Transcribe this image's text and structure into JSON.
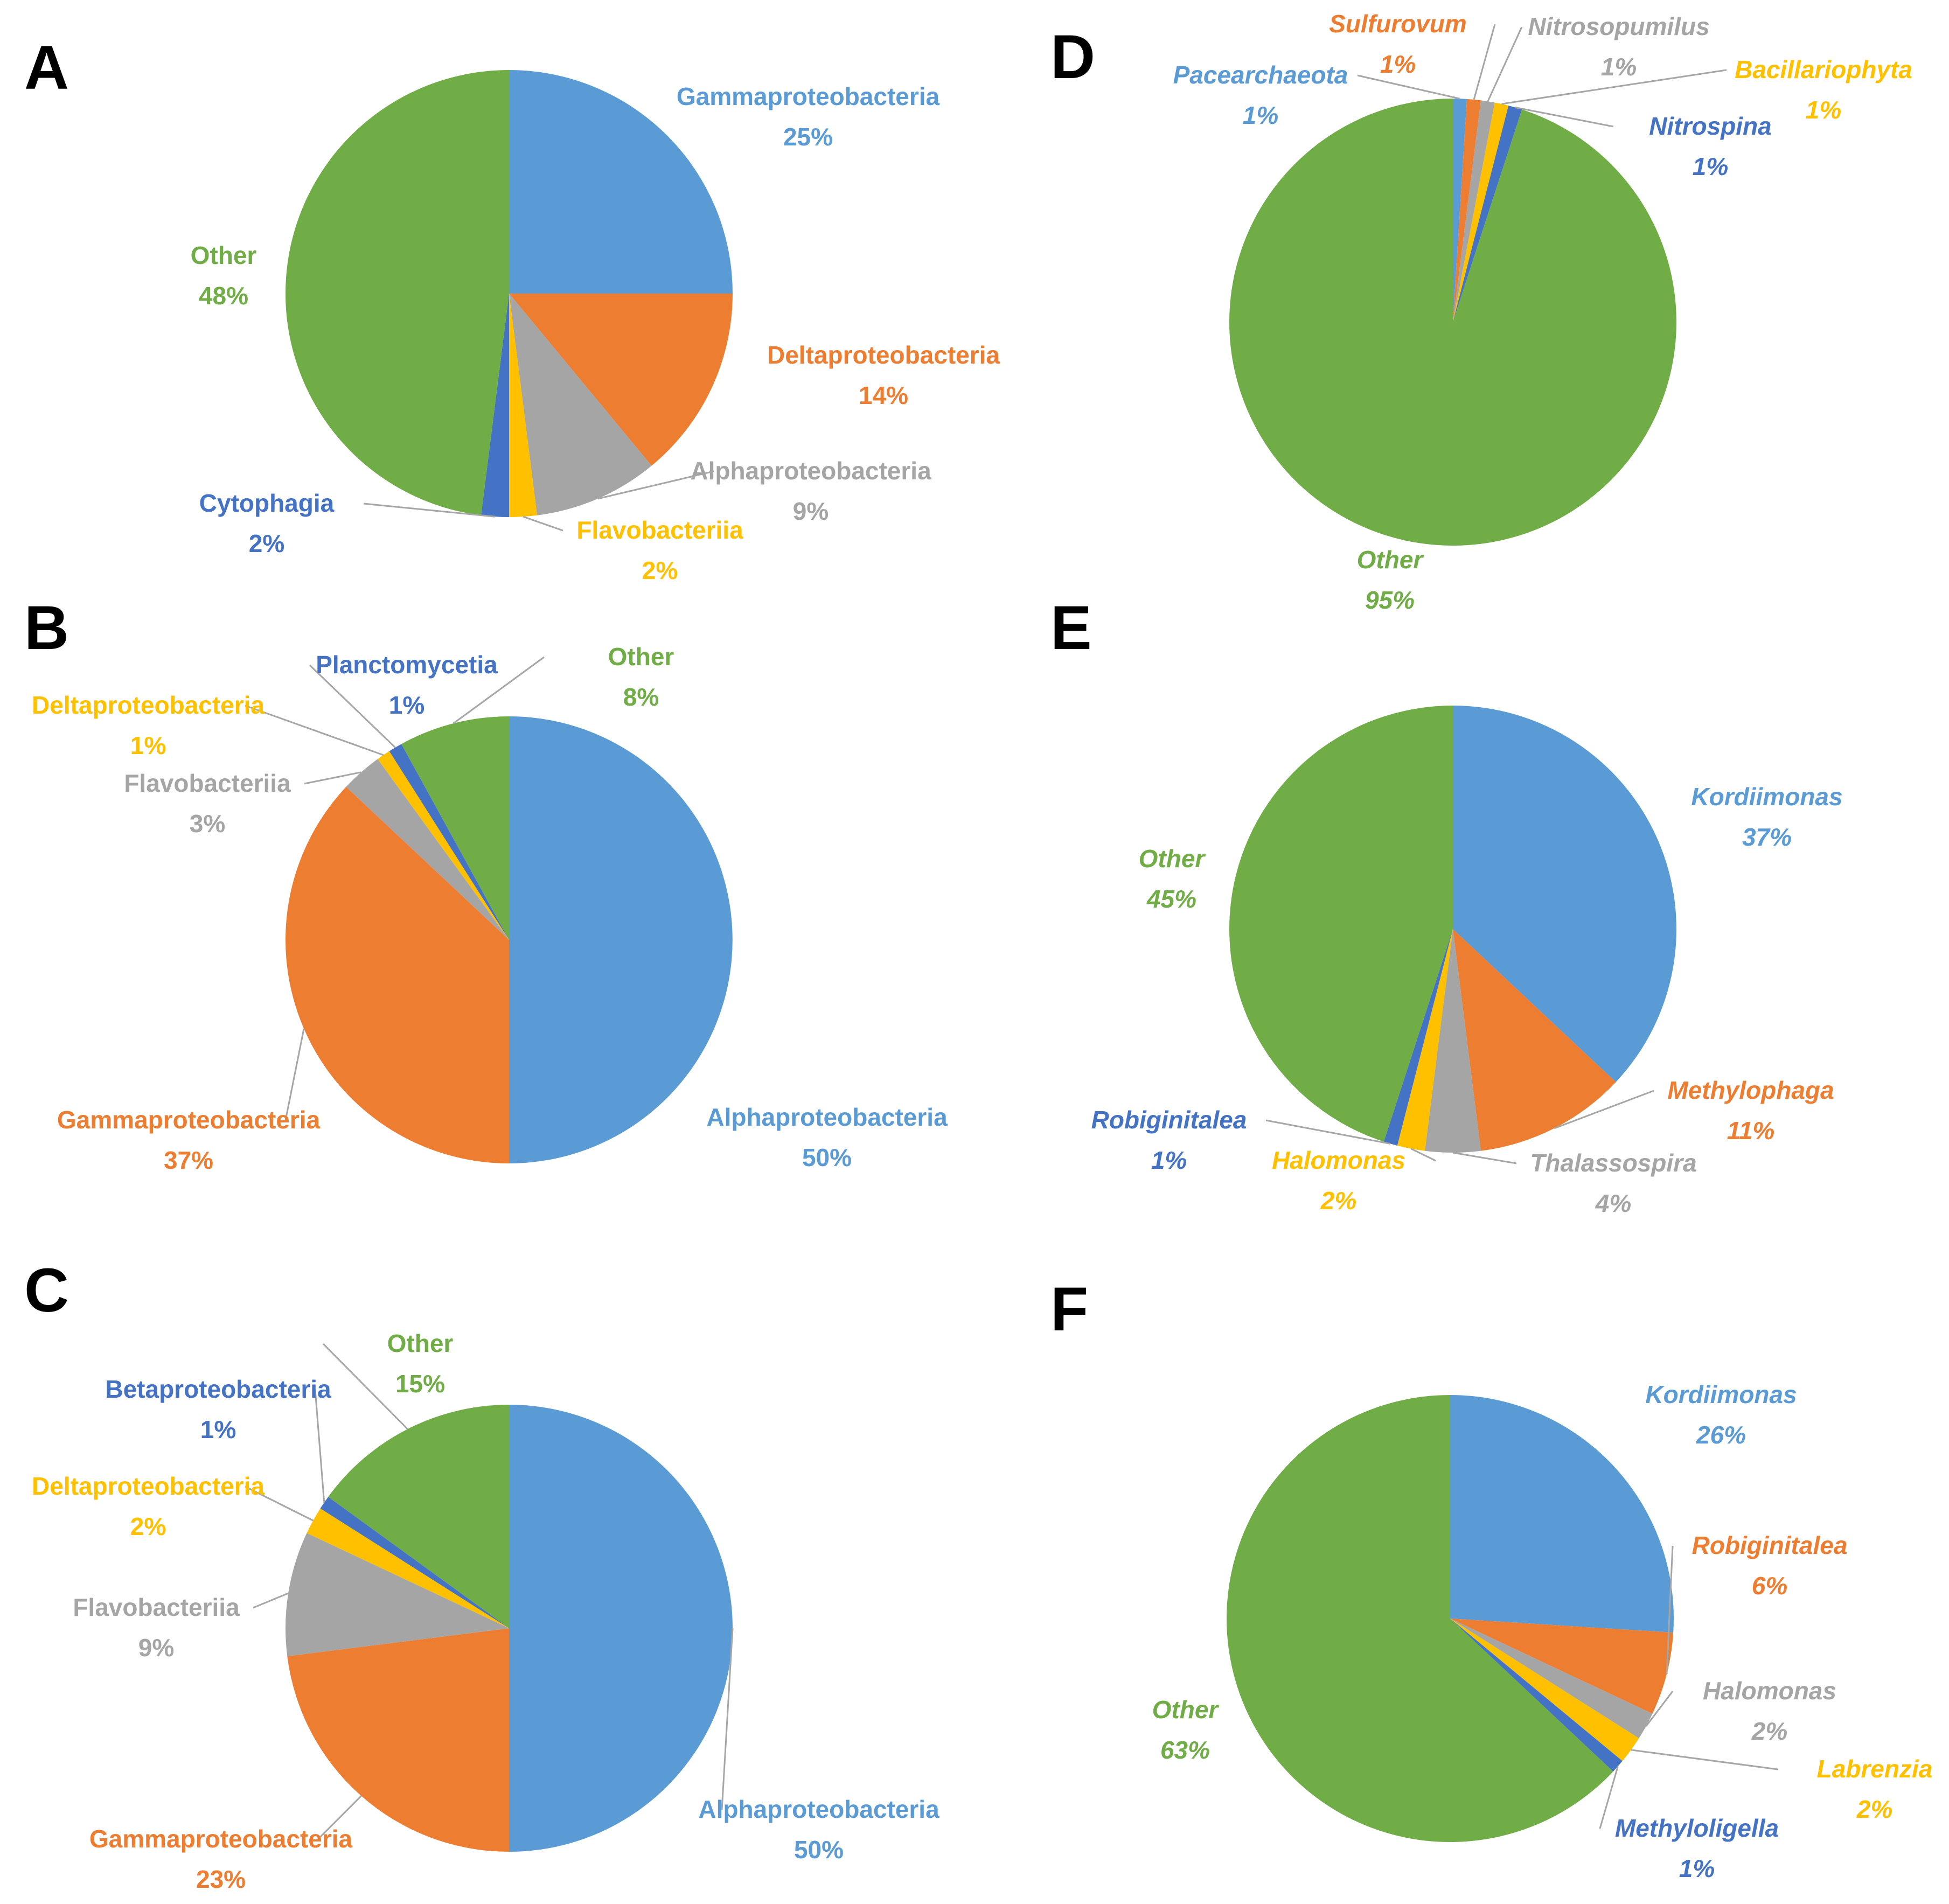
{
  "palette": {
    "blue": "#5b9bd5",
    "orange": "#ed7d31",
    "gray": "#a5a5a5",
    "yellow": "#ffc000",
    "darkblue": "#4472c4",
    "green": "#70ad47"
  },
  "chart_data": [
    {
      "panel": "A",
      "type": "pie",
      "italic": false,
      "slices": [
        {
          "name": "Gammaproteobacteria",
          "value": 25,
          "label": "25%",
          "color": "#5b9bd5"
        },
        {
          "name": "Deltaproteobacteria",
          "value": 14,
          "label": "14%",
          "color": "#ed7d31"
        },
        {
          "name": "Alphaproteobacteria",
          "value": 9,
          "label": "9%",
          "color": "#a5a5a5"
        },
        {
          "name": "Flavobacteriia",
          "value": 2,
          "label": "2%",
          "color": "#ffc000"
        },
        {
          "name": "Cytophagia",
          "value": 2,
          "label": "2%",
          "color": "#4472c4"
        },
        {
          "name": "Other",
          "value": 48,
          "label": "48%",
          "color": "#70ad47"
        }
      ]
    },
    {
      "panel": "B",
      "type": "pie",
      "italic": false,
      "slices": [
        {
          "name": "Alphaproteobacteria",
          "value": 50,
          "label": "50%",
          "color": "#5b9bd5"
        },
        {
          "name": "Gammaproteobacteria",
          "value": 37,
          "label": "37%",
          "color": "#ed7d31"
        },
        {
          "name": "Flavobacteriia",
          "value": 3,
          "label": "3%",
          "color": "#a5a5a5"
        },
        {
          "name": "Deltaproteobacteria",
          "value": 1,
          "label": "1%",
          "color": "#ffc000"
        },
        {
          "name": "Planctomycetia",
          "value": 1,
          "label": "1%",
          "color": "#4472c4"
        },
        {
          "name": "Other",
          "value": 8,
          "label": "8%",
          "color": "#70ad47"
        }
      ]
    },
    {
      "panel": "C",
      "type": "pie",
      "italic": false,
      "slices": [
        {
          "name": "Alphaproteobacteria",
          "value": 50,
          "label": "50%",
          "color": "#5b9bd5"
        },
        {
          "name": "Gammaproteobacteria",
          "value": 23,
          "label": "23%",
          "color": "#ed7d31"
        },
        {
          "name": "Flavobacteriia",
          "value": 9,
          "label": "9%",
          "color": "#a5a5a5"
        },
        {
          "name": "Deltaproteobacteria",
          "value": 2,
          "label": "2%",
          "color": "#ffc000"
        },
        {
          "name": "Betaproteobacteria",
          "value": 1,
          "label": "1%",
          "color": "#4472c4"
        },
        {
          "name": "Other",
          "value": 15,
          "label": "15%",
          "color": "#70ad47"
        }
      ]
    },
    {
      "panel": "D",
      "type": "pie",
      "italic": true,
      "slices": [
        {
          "name": "Pacearchaeota",
          "value": 1,
          "label": "1%",
          "color": "#5b9bd5"
        },
        {
          "name": "Sulfurovum",
          "value": 1,
          "label": "1%",
          "color": "#ed7d31"
        },
        {
          "name": "Nitrosopumilus",
          "value": 1,
          "label": "1%",
          "color": "#a5a5a5"
        },
        {
          "name": "Bacillariophyta",
          "value": 1,
          "label": "1%",
          "color": "#ffc000"
        },
        {
          "name": "Nitrospina",
          "value": 1,
          "label": "1%",
          "color": "#4472c4"
        },
        {
          "name": "Other",
          "value": 95,
          "label": "95%",
          "color": "#70ad47"
        }
      ]
    },
    {
      "panel": "E",
      "type": "pie",
      "italic": true,
      "slices": [
        {
          "name": "Kordiimonas",
          "value": 37,
          "label": "37%",
          "color": "#5b9bd5"
        },
        {
          "name": "Methylophaga",
          "value": 11,
          "label": "11%",
          "color": "#ed7d31"
        },
        {
          "name": "Thalassospira",
          "value": 4,
          "label": "4%",
          "color": "#a5a5a5"
        },
        {
          "name": "Halomonas",
          "value": 2,
          "label": "2%",
          "color": "#ffc000"
        },
        {
          "name": "Robiginitalea",
          "value": 1,
          "label": "1%",
          "color": "#4472c4"
        },
        {
          "name": "Other",
          "value": 45,
          "label": "45%",
          "color": "#70ad47"
        }
      ]
    },
    {
      "panel": "F",
      "type": "pie",
      "italic": true,
      "slices": [
        {
          "name": "Kordiimonas",
          "value": 26,
          "label": "26%",
          "color": "#5b9bd5"
        },
        {
          "name": "Robiginitalea",
          "value": 6,
          "label": "6%",
          "color": "#ed7d31"
        },
        {
          "name": "Halomonas",
          "value": 2,
          "label": "2%",
          "color": "#a5a5a5"
        },
        {
          "name": "Labrenzia",
          "value": 2,
          "label": "2%",
          "color": "#ffc000"
        },
        {
          "name": "Methyloligella",
          "value": 1,
          "label": "1%",
          "color": "#4472c4"
        },
        {
          "name": "Other",
          "value": 63,
          "label": "63%",
          "color": "#70ad47"
        }
      ]
    }
  ]
}
